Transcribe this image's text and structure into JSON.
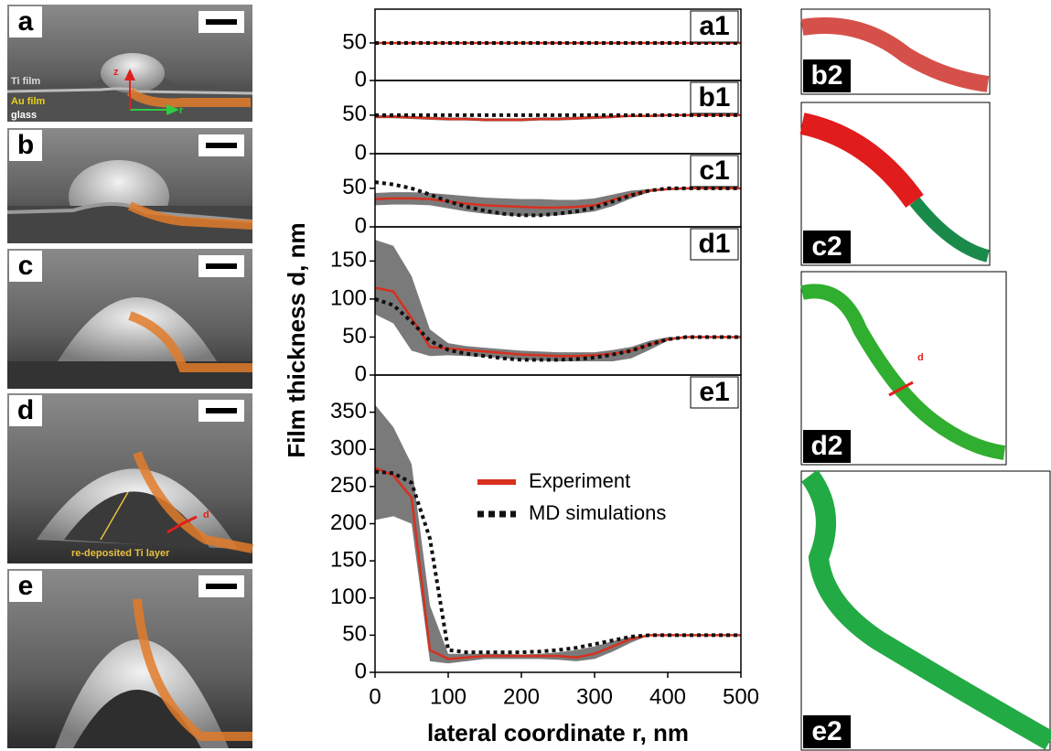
{
  "chart_data": [
    {
      "type": "line",
      "panel_label": "a1",
      "xlim": [
        0,
        500
      ],
      "ylim": [
        0,
        95
      ],
      "yticks": [
        0,
        50
      ],
      "x": [
        0,
        25,
        50,
        75,
        100,
        125,
        150,
        175,
        200,
        225,
        250,
        275,
        300,
        325,
        350,
        375,
        400,
        425,
        450,
        475,
        500
      ],
      "series": [
        {
          "color": "#d7301f",
          "style": "solid",
          "values": [
            50,
            50,
            50,
            50,
            50,
            50,
            50,
            50,
            50,
            50,
            50,
            50,
            50,
            50,
            50,
            50,
            50,
            50,
            50,
            50,
            50
          ]
        },
        {
          "color": "#111111",
          "style": "dotted",
          "values": [
            50,
            50,
            50,
            50,
            50,
            50,
            50,
            50,
            50,
            50,
            50,
            50,
            50,
            50,
            50,
            50,
            50,
            50,
            50,
            50,
            50
          ]
        }
      ]
    },
    {
      "type": "line",
      "panel_label": "b1",
      "xlim": [
        0,
        500
      ],
      "ylim": [
        0,
        95
      ],
      "yticks": [
        0,
        50
      ],
      "x": [
        0,
        25,
        50,
        75,
        100,
        125,
        150,
        175,
        200,
        225,
        250,
        275,
        300,
        325,
        350,
        375,
        400,
        425,
        450,
        475,
        500
      ],
      "band": {
        "color": "#7a7a7a",
        "lower": [
          46,
          46,
          45,
          44,
          43,
          43,
          42,
          42,
          42,
          43,
          43,
          44,
          45,
          46,
          48,
          49,
          50,
          50,
          50,
          50,
          50
        ],
        "upper": [
          50,
          50,
          49,
          48,
          47,
          47,
          46,
          46,
          46,
          47,
          47,
          48,
          49,
          50,
          50,
          50,
          50,
          50,
          50,
          50,
          50
        ]
      },
      "series": [
        {
          "color": "#d7301f",
          "style": "solid",
          "values": [
            48,
            48,
            47,
            46,
            45,
            45,
            44,
            44,
            44,
            45,
            45,
            46,
            47,
            48,
            49,
            49,
            50,
            50,
            50,
            50,
            50
          ]
        },
        {
          "color": "#111111",
          "style": "dotted",
          "values": [
            50,
            50,
            50,
            50,
            50,
            50,
            50,
            50,
            50,
            50,
            50,
            50,
            50,
            50,
            50,
            50,
            50,
            50,
            50,
            50,
            50
          ]
        }
      ]
    },
    {
      "type": "line",
      "panel_label": "c1",
      "xlim": [
        0,
        500
      ],
      "ylim": [
        0,
        95
      ],
      "yticks": [
        0,
        50
      ],
      "x": [
        0,
        25,
        50,
        75,
        100,
        125,
        150,
        175,
        200,
        225,
        250,
        275,
        300,
        325,
        350,
        375,
        400,
        425,
        450,
        475,
        500
      ],
      "band": {
        "color": "#7a7a7a",
        "lower": [
          28,
          29,
          29,
          28,
          24,
          20,
          17,
          15,
          14,
          14,
          15,
          17,
          20,
          27,
          37,
          45,
          49,
          50,
          50,
          50,
          50
        ],
        "upper": [
          44,
          45,
          45,
          44,
          42,
          40,
          38,
          37,
          36,
          36,
          35,
          35,
          37,
          42,
          47,
          49,
          50,
          50,
          50,
          50,
          50
        ]
      },
      "series": [
        {
          "color": "#d7301f",
          "style": "solid",
          "values": [
            36,
            37,
            37,
            36,
            33,
            30,
            28,
            27,
            26,
            25,
            25,
            26,
            28,
            35,
            42,
            47,
            49,
            50,
            50,
            50,
            50
          ]
        },
        {
          "color": "#111111",
          "style": "dotted",
          "values": [
            58,
            55,
            50,
            42,
            33,
            26,
            21,
            17,
            15,
            15,
            17,
            20,
            25,
            33,
            41,
            47,
            50,
            50,
            50,
            50,
            50
          ]
        }
      ]
    },
    {
      "type": "line",
      "panel_label": "d1",
      "xlim": [
        0,
        500
      ],
      "ylim": [
        0,
        195
      ],
      "yticks": [
        0,
        50,
        100,
        150
      ],
      "x": [
        0,
        25,
        50,
        75,
        100,
        125,
        150,
        175,
        200,
        225,
        250,
        275,
        300,
        325,
        350,
        375,
        400,
        425,
        450,
        475,
        500
      ],
      "band": {
        "color": "#7a7a7a",
        "lower": [
          80,
          68,
          32,
          25,
          26,
          25,
          24,
          22,
          20,
          19,
          18,
          18,
          18,
          18,
          22,
          33,
          45,
          50,
          50,
          50,
          50
        ],
        "upper": [
          178,
          170,
          130,
          60,
          42,
          38,
          36,
          34,
          32,
          31,
          30,
          30,
          30,
          33,
          37,
          45,
          50,
          50,
          50,
          50,
          50
        ]
      },
      "series": [
        {
          "color": "#d7301f",
          "style": "solid",
          "values": [
            115,
            110,
            75,
            37,
            35,
            33,
            31,
            29,
            27,
            26,
            25,
            25,
            26,
            28,
            32,
            40,
            47,
            50,
            50,
            50,
            50
          ]
        },
        {
          "color": "#111111",
          "style": "dotted",
          "values": [
            100,
            92,
            70,
            45,
            33,
            28,
            25,
            22,
            20,
            20,
            20,
            21,
            23,
            27,
            32,
            40,
            47,
            50,
            50,
            50,
            50
          ]
        }
      ]
    },
    {
      "type": "line",
      "panel_label": "e1",
      "xlim": [
        0,
        500
      ],
      "ylim": [
        0,
        400
      ],
      "yticks": [
        0,
        50,
        100,
        150,
        200,
        250,
        300,
        350
      ],
      "xticks": [
        0,
        100,
        200,
        300,
        400,
        500
      ],
      "legend": "center",
      "x": [
        0,
        25,
        50,
        75,
        100,
        125,
        150,
        175,
        200,
        225,
        250,
        275,
        300,
        325,
        350,
        375,
        400,
        425,
        450,
        475,
        500
      ],
      "band": {
        "color": "#7a7a7a",
        "lower": [
          205,
          210,
          200,
          15,
          12,
          15,
          18,
          18,
          18,
          18,
          17,
          15,
          18,
          28,
          40,
          50,
          50,
          50,
          50,
          50,
          50
        ],
        "upper": [
          360,
          330,
          280,
          90,
          25,
          25,
          25,
          25,
          24,
          25,
          27,
          30,
          35,
          42,
          48,
          50,
          50,
          50,
          50,
          50,
          50
        ]
      },
      "series": [
        {
          "name": "Experiment",
          "color": "#d7301f",
          "style": "solid",
          "values": [
            275,
            265,
            235,
            30,
            18,
            20,
            22,
            22,
            22,
            22,
            22,
            20,
            25,
            35,
            45,
            50,
            50,
            50,
            50,
            50,
            50
          ]
        },
        {
          "name": "MD simulations",
          "color": "#111111",
          "style": "dotted",
          "values": [
            270,
            268,
            255,
            180,
            30,
            27,
            27,
            27,
            27,
            28,
            30,
            33,
            38,
            43,
            48,
            50,
            50,
            50,
            50,
            50,
            50
          ]
        }
      ]
    }
  ],
  "axis_labels": {
    "y": "Film thickness d, nm",
    "x": "lateral coordinate r, nm"
  },
  "left_panels": [
    {
      "label": "a",
      "texts": [
        "Ti film",
        "Au film",
        "glass",
        "z",
        "r"
      ]
    },
    {
      "label": "b"
    },
    {
      "label": "c"
    },
    {
      "label": "d",
      "texts": [
        "d",
        "re-deposited Ti layer"
      ]
    },
    {
      "label": "e"
    }
  ],
  "right_panels": [
    {
      "label": "b2"
    },
    {
      "label": "c2"
    },
    {
      "label": "d2",
      "texts": [
        "d"
      ]
    },
    {
      "label": "e2"
    }
  ]
}
